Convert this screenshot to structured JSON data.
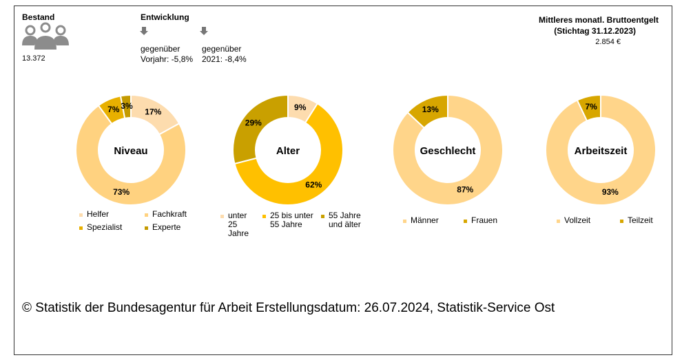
{
  "header": {
    "bestand": {
      "title": "Bestand",
      "value": "13.372"
    },
    "entwicklung": {
      "title": "Entwicklung",
      "items": [
        {
          "label": "gegenüber",
          "text": "Vorjahr: -5,8%"
        },
        {
          "label": "gegenüber",
          "text": "2021: -8,4%"
        }
      ]
    },
    "entgelt": {
      "title": "Mittleres monatl. Bruttoentgelt",
      "subtitle": "(Stichtag 31.12.2023)",
      "value": "2.854 €"
    }
  },
  "chart_data": [
    {
      "type": "donut",
      "title": "Niveau",
      "categories": [
        "Helfer",
        "Fachkraft",
        "Spezialist",
        "Experte"
      ],
      "values": [
        17,
        73,
        7,
        3
      ],
      "value_labels": [
        "17%",
        "73%",
        "7%",
        "3%"
      ],
      "colors": [
        "#fddcae",
        "#ffd280",
        "#e8b000",
        "#c49a00"
      ]
    },
    {
      "type": "donut",
      "title": "Alter",
      "categories": [
        "unter 25 Jahre",
        "25 bis unter 55 Jahre",
        "55 Jahre und älter"
      ],
      "values": [
        9,
        62,
        29
      ],
      "value_labels": [
        "9%",
        "62%",
        "29%"
      ],
      "colors": [
        "#fddcae",
        "#ffc000",
        "#c9a000"
      ]
    },
    {
      "type": "donut",
      "title": "Geschlecht",
      "categories": [
        "Männer",
        "Frauen"
      ],
      "values": [
        87,
        13
      ],
      "value_labels": [
        "87%",
        "13%"
      ],
      "colors": [
        "#ffd58a",
        "#d7a600"
      ]
    },
    {
      "type": "donut",
      "title": "Arbeitszeit",
      "categories": [
        "Vollzeit",
        "Teilzeit"
      ],
      "values": [
        93,
        7
      ],
      "value_labels": [
        "93%",
        "7%"
      ],
      "colors": [
        "#ffd58a",
        "#d7a600"
      ]
    }
  ],
  "footer": "© Statistik der Bundesagentur für Arbeit Erstellungsdatum: 26.07.2024, Statistik-Service Ost"
}
